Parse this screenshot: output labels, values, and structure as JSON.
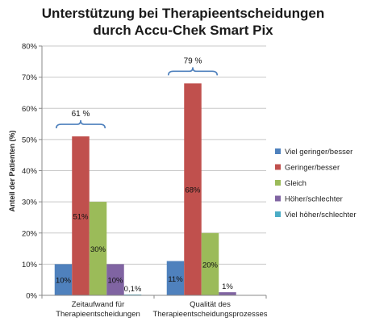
{
  "chart_data": {
    "type": "bar",
    "title_lines": [
      "Unterstützung bei Therapieentscheidungen",
      "durch Accu-Chek Smart Pix"
    ],
    "ylabel": "Anteil der Patienten (%)",
    "ylim": [
      0,
      80
    ],
    "yticks": [
      "0%",
      "10%",
      "20%",
      "30%",
      "40%",
      "50%",
      "60%",
      "70%",
      "80%"
    ],
    "ytick_values": [
      0,
      10,
      20,
      30,
      40,
      50,
      60,
      70,
      80
    ],
    "categories": [
      [
        "Zeitaufwand für",
        "Therapieentscheidungen"
      ],
      [
        "Qualität des",
        "Therapieentscheidungsprozesses"
      ]
    ],
    "series": [
      {
        "name": "Viel geringer/besser",
        "color": "#4F81BD",
        "values": [
          10,
          11
        ],
        "labels": [
          "10%",
          "11%"
        ]
      },
      {
        "name": "Geringer/besser",
        "color": "#C0504D",
        "values": [
          51,
          68
        ],
        "labels": [
          "51%",
          "68%"
        ]
      },
      {
        "name": "Gleich",
        "color": "#9BBB59",
        "values": [
          30,
          20
        ],
        "labels": [
          "30%",
          "20%"
        ]
      },
      {
        "name": "Höher/schlechter",
        "color": "#8064A2",
        "values": [
          10,
          1
        ],
        "labels": [
          "10%",
          "1%"
        ]
      },
      {
        "name": "Viel höher/schlechter",
        "color": "#4BACC6",
        "values": [
          0.1,
          0
        ],
        "labels": [
          "0,1%",
          ""
        ]
      }
    ],
    "annotations": [
      {
        "text": "61 %",
        "group": 0
      },
      {
        "text": "79 %",
        "group": 1
      }
    ],
    "legend_position": "right",
    "grid": true
  }
}
